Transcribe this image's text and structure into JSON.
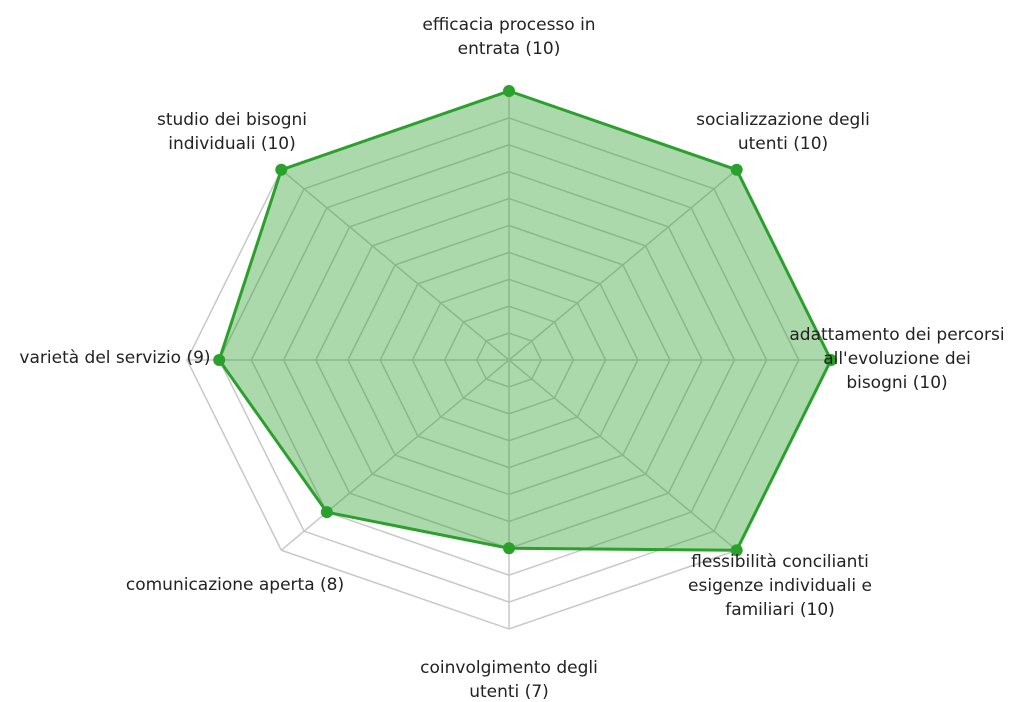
{
  "chart_data": {
    "type": "radar",
    "categories": [
      [
        "efficacia processo in",
        "entrata (10)"
      ],
      [
        "socializzazione degli",
        "utenti (10)"
      ],
      [
        "adattamento dei percorsi",
        "all'evoluzione dei",
        "bisogni (10)"
      ],
      [
        "flessibilità concilianti",
        "esigenze individuali e",
        "familiari (10)"
      ],
      [
        "coinvolgimento degli",
        "utenti (7)"
      ],
      [
        "comunicazione aperta (8)"
      ],
      [
        "varietà del servizio (9)"
      ],
      [
        "studio dei bisogni",
        "individuali (10)"
      ]
    ],
    "values": [
      10,
      10,
      10,
      10,
      7,
      8,
      9,
      10
    ],
    "color": "#2ca02c",
    "rlim": [
      0,
      10
    ],
    "rticks": [
      1,
      2,
      3,
      4,
      5,
      6,
      7,
      8,
      9,
      10
    ],
    "grid": true
  }
}
